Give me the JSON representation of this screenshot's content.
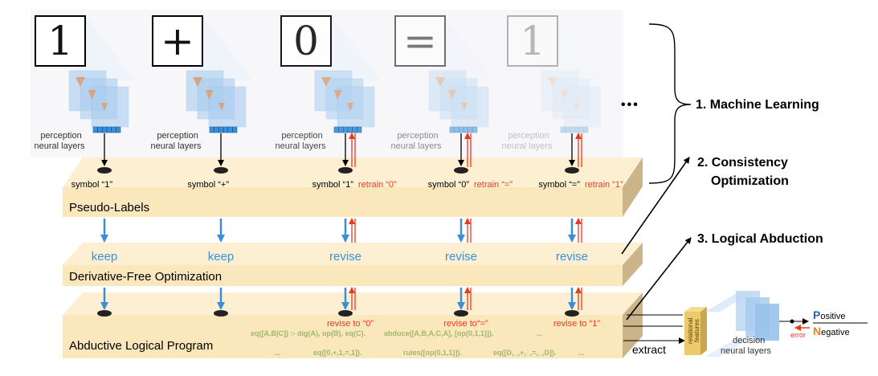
{
  "digits": [
    {
      "glyph": "1",
      "perception_label": [
        "perception",
        "neural layers"
      ],
      "symbol": "symbol “1”",
      "retrain": "",
      "action": "keep",
      "revise_to": ""
    },
    {
      "glyph": "+",
      "perception_label": [
        "perception",
        "neural layers"
      ],
      "symbol": "symbol “+”",
      "retrain": "",
      "action": "keep",
      "revise_to": ""
    },
    {
      "glyph": "0",
      "perception_label": [
        "perception",
        "neural layers"
      ],
      "symbol": "symbol “1”",
      "retrain": "retrain “0”",
      "action": "revise",
      "revise_to": "revise to “0”"
    },
    {
      "glyph": "=",
      "perception_label": [
        "perception",
        "neural layers"
      ],
      "symbol": "symbol “0”",
      "retrain": "retrain “=”",
      "action": "revise",
      "revise_to": "revise to“=”"
    },
    {
      "glyph": "1",
      "perception_label": [
        "perception",
        "neural layers"
      ],
      "symbol": "symbol “=”",
      "retrain": "retrain “1”",
      "action": "revise",
      "revise_to": "revise to “1”"
    }
  ],
  "ellipsis": "•••",
  "layers": {
    "pseudo_labels": "Pseudo-Labels",
    "dfo": "Derivative-Free Optimization",
    "alp": "Abductive Logical Program"
  },
  "steps": {
    "ml": "1. Machine Learning",
    "co_line1": "2. Consistency",
    "co_line2": "Optimization",
    "la": "3. Logical Abduction"
  },
  "code_lines": [
    "eq([A,B|C]) :- dig(A), op(B), eq(C).",
    "abduce([A,B,A,C,A], [op(0,1,1)]).",
    "...",
    "...",
    "eq([0,+,1,=,1]).",
    "rules([op(0,1,1)]).",
    "eq([D,_,+,_,=,_,D]).",
    "..."
  ],
  "extract_label": "extract",
  "relational_features": [
    "relational",
    "features"
  ],
  "decision_label": [
    "decision",
    "neural layers"
  ],
  "error_label": "error",
  "outcome": {
    "positive_initial": "P",
    "positive_rest": "ositive",
    "negative_initial": "N",
    "negative_rest": "egative"
  },
  "colors": {
    "layer_top": "#fdf0d2",
    "layer_front": "#fbe7bc",
    "layer_side": "#cbb48a",
    "blue_arrow": "#3b8fd8",
    "red": "#e83a1f",
    "keep_revise_text": "#3b8fd8",
    "code_text": "#9fb76e",
    "positive": "#2e5fb8",
    "negative": "#e8821e"
  }
}
